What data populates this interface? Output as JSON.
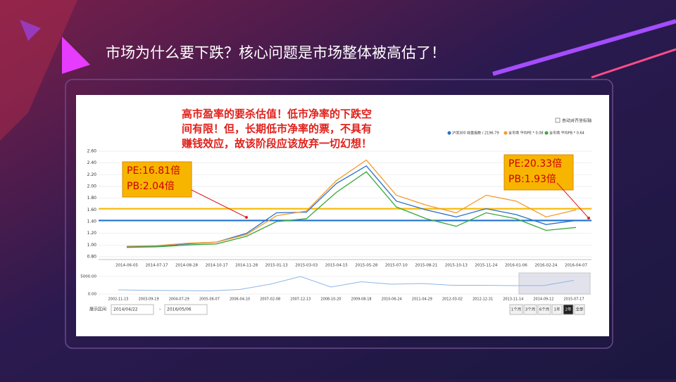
{
  "slide_title": "市场为什么要下跌？核心问题是市场整体被高估了！",
  "chart_data": {
    "type": "line",
    "x": [
      "2014-06-05",
      "2014-07-17",
      "2014-08-28",
      "2014-10-17",
      "2014-11-28",
      "2015-01-13",
      "2015-03-03",
      "2015-04-15",
      "2015-05-28",
      "2015-07-10",
      "2015-08-21",
      "2015-10-13",
      "2015-11-24",
      "2016-01-06",
      "2016-02-24",
      "2016-04-07"
    ],
    "series": [
      {
        "name": "沪深300 收盘指数 / 2196.79",
        "color": "#2a6fc9",
        "values": [
          0.97,
          0.98,
          1.02,
          1.05,
          1.2,
          1.55,
          1.56,
          2.05,
          2.35,
          1.75,
          1.6,
          1.48,
          1.62,
          1.52,
          1.35,
          1.42
        ]
      },
      {
        "name": "全市场 平均PE * 0.08",
        "color": "#f39a2b",
        "values": [
          0.98,
          0.99,
          1.03,
          1.05,
          1.18,
          1.5,
          1.58,
          2.1,
          2.45,
          1.85,
          1.68,
          1.55,
          1.85,
          1.75,
          1.48,
          1.6
        ]
      },
      {
        "name": "全市场 平均PB * 0.64",
        "color": "#3aa83a",
        "values": [
          0.96,
          0.97,
          1.0,
          1.02,
          1.15,
          1.4,
          1.45,
          1.9,
          2.25,
          1.65,
          1.45,
          1.32,
          1.55,
          1.45,
          1.25,
          1.3
        ]
      }
    ],
    "ylim": [
      0.8,
      2.6
    ],
    "yticks": [
      {
        "value": 0.8,
        "label": "0.80"
      },
      {
        "value": 1.0,
        "label": "1.00"
      },
      {
        "value": 1.2,
        "label": "1.20"
      },
      {
        "value": 1.4,
        "label": "1.40"
      },
      {
        "value": 1.6,
        "label": "1.60"
      },
      {
        "value": 1.8,
        "label": "1.80"
      },
      {
        "value": 2.0,
        "label": "2.00"
      },
      {
        "value": 2.2,
        "label": "2.20"
      },
      {
        "value": 2.4,
        "label": "2.40"
      },
      {
        "value": 2.6,
        "label": "2.60"
      }
    ],
    "grid": true,
    "reference_lines": [
      {
        "value": 1.62,
        "color": "#f5b800"
      },
      {
        "value": 1.42,
        "color": "#1f6fd1"
      }
    ],
    "legend_checkbox": "自动对齐坐标轴",
    "annotation_lines": [
      "高市盈率的要杀估值！低市净率的下跌空",
      "间有限！但，长期低市净率的票，不具有",
      "赚钱效应，故该阶段应该放弃一切幻想！"
    ],
    "callouts": [
      {
        "lines": [
          "PE:16.81倍",
          "PB:2.04倍"
        ]
      },
      {
        "lines": [
          "PE:20.33倍",
          "PB:1.93倍"
        ]
      }
    ],
    "navigator": {
      "x": [
        "2002-11-15",
        "2003-09-19",
        "2004-07-29",
        "2005-06-07",
        "2006-04-10",
        "2007-02-08",
        "2007-12-13",
        "2008-10-20",
        "2009-08-18",
        "2010-06-24",
        "2011-04-29",
        "2012-03-02",
        "2012-12-31",
        "2013-11-14",
        "2014-09-12",
        "2015-07-17"
      ],
      "values": [
        1200,
        1050,
        1000,
        900,
        1300,
        2800,
        5000,
        2000,
        3500,
        2800,
        3000,
        2500,
        2500,
        2400,
        2400,
        3900
      ],
      "color": "#8fb6e6",
      "ylim": [
        0,
        6000
      ],
      "yticks": [
        {
          "value": 0,
          "label": "0.00"
        },
        {
          "value": 5000,
          "label": "5000.00"
        }
      ]
    }
  },
  "controls": {
    "range_label": "展示区间",
    "start": "2014/04/22",
    "separator": "-",
    "end": "2016/05/06",
    "buttons": [
      "1个月",
      "3个月",
      "6个月",
      "1年",
      "2年",
      "全部"
    ]
  }
}
